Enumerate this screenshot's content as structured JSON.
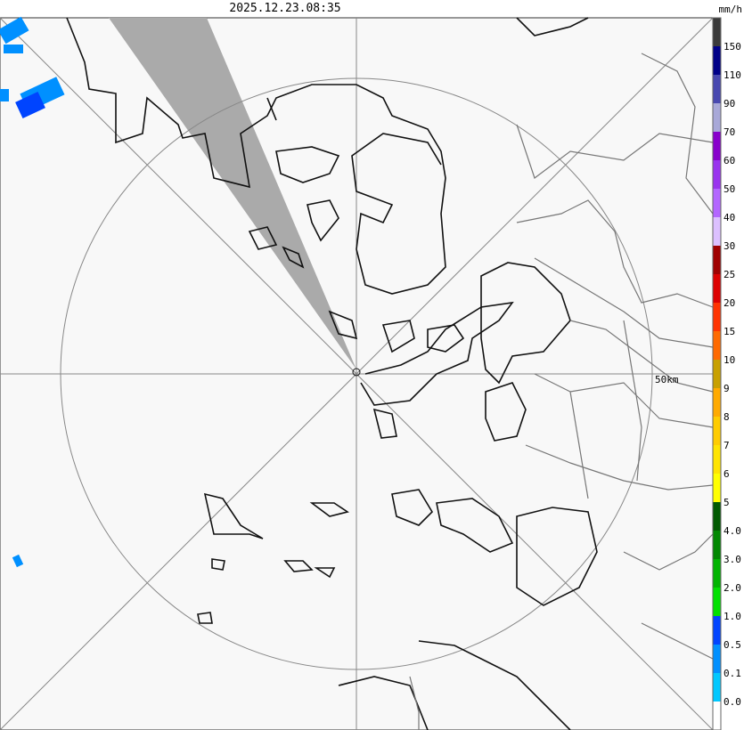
{
  "header": {
    "timestamp": "2025.12.23.08:35"
  },
  "map": {
    "range_label": "50km"
  },
  "legend": {
    "unit": "mm/h",
    "labels": [
      "150",
      "110",
      "90",
      "70",
      "60",
      "50",
      "40",
      "30",
      "25",
      "20",
      "15",
      "10",
      "9",
      "8",
      "7",
      "6",
      "5",
      "4.0",
      "3.0",
      "2.0",
      "1.0",
      "0.5",
      "0.1",
      "0.0"
    ],
    "colors": [
      "#3a3a3a",
      "#000088",
      "#4848b0",
      "#a8a8d8",
      "#8800cc",
      "#9933ee",
      "#b366ff",
      "#dcc0ff",
      "#a00000",
      "#dd0000",
      "#ff3300",
      "#ff6a00",
      "#c8a000",
      "#ffaa00",
      "#ffcc00",
      "#ffe400",
      "#ffff00",
      "#005a00",
      "#008800",
      "#00b400",
      "#00e000",
      "#0044ff",
      "#0090ff",
      "#00c8ff",
      "#ffffff"
    ]
  }
}
